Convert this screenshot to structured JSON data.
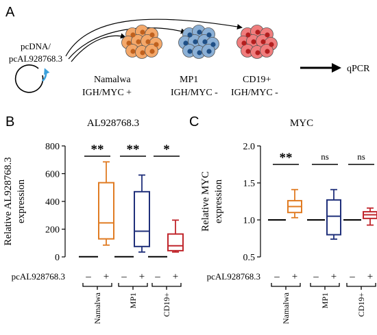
{
  "panel_a": {
    "letter": "A",
    "vector_label_line1": "pcDNA/",
    "vector_label_line2": "pcAL928768.3",
    "cells": [
      {
        "name_line1": "Namalwa",
        "name_line2": "IGH/MYC +",
        "fill": "#f4a86a",
        "nucleus": "#c0611e"
      },
      {
        "name_line1": "MP1",
        "name_line2": "IGH/MYC -",
        "fill": "#8bb0d6",
        "nucleus": "#1f4f86"
      },
      {
        "name_line1": "CD19+",
        "name_line2": "IGH/MYC -",
        "fill": "#f07d7d",
        "nucleus": "#b31f1f"
      }
    ],
    "result_label": "qPCR",
    "plasmid_arrow_color": "#3aa0dc"
  },
  "chart_data": [
    {
      "type": "box",
      "panel": "B",
      "title": "AL928768.3",
      "ylabel": "Relative AL928768.3 expression",
      "ylim": [
        0,
        800
      ],
      "yticks": [
        0,
        200,
        400,
        600,
        800
      ],
      "treatment_label": "pcAL928768.3",
      "pair_labels": [
        "–",
        "+"
      ],
      "groups": [
        "Namalwa",
        "MP1",
        "CD19+"
      ],
      "series": [
        {
          "group": "Namalwa",
          "treatment": "–",
          "color": "#000000",
          "min": 1,
          "q1": 1,
          "median": 1,
          "q3": 1,
          "max": 1
        },
        {
          "group": "Namalwa",
          "treatment": "+",
          "color": "#e07b22",
          "min": 85,
          "q1": 130,
          "median": 245,
          "q3": 535,
          "max": 685
        },
        {
          "group": "MP1",
          "treatment": "–",
          "color": "#000000",
          "min": 1,
          "q1": 1,
          "median": 1,
          "q3": 1,
          "max": 1
        },
        {
          "group": "MP1",
          "treatment": "+",
          "color": "#1f2f7a",
          "min": 35,
          "q1": 75,
          "median": 185,
          "q3": 470,
          "max": 590
        },
        {
          "group": "CD19+",
          "treatment": "–",
          "color": "#000000",
          "min": 1,
          "q1": 1,
          "median": 1,
          "q3": 1,
          "max": 1
        },
        {
          "group": "CD19+",
          "treatment": "+",
          "color": "#c0252b",
          "min": 35,
          "q1": 45,
          "median": 80,
          "q3": 165,
          "max": 265
        }
      ],
      "significance": [
        "**",
        "**",
        "*"
      ]
    },
    {
      "type": "box",
      "panel": "C",
      "title": "MYC",
      "ylabel": "Relative MYC expression",
      "ylim": [
        0.5,
        2.0
      ],
      "yticks": [
        "0.5",
        "1.0",
        "1.5",
        "2.0"
      ],
      "treatment_label": "pcAL928768.3",
      "pair_labels": [
        "–",
        "+"
      ],
      "groups": [
        "Namalwa",
        "MP1",
        "CD19+"
      ],
      "series": [
        {
          "group": "Namalwa",
          "treatment": "–",
          "color": "#000000",
          "min": 1.0,
          "q1": 1.0,
          "median": 1.0,
          "q3": 1.0,
          "max": 1.0
        },
        {
          "group": "Namalwa",
          "treatment": "+",
          "color": "#e07b22",
          "min": 1.03,
          "q1": 1.1,
          "median": 1.18,
          "q3": 1.26,
          "max": 1.41
        },
        {
          "group": "MP1",
          "treatment": "–",
          "color": "#000000",
          "min": 1.0,
          "q1": 1.0,
          "median": 1.0,
          "q3": 1.0,
          "max": 1.0
        },
        {
          "group": "MP1",
          "treatment": "+",
          "color": "#1f2f7a",
          "min": 0.74,
          "q1": 0.8,
          "median": 1.05,
          "q3": 1.27,
          "max": 1.41
        },
        {
          "group": "CD19+",
          "treatment": "–",
          "color": "#000000",
          "min": 1.0,
          "q1": 1.0,
          "median": 1.0,
          "q3": 1.0,
          "max": 1.0
        },
        {
          "group": "CD19+",
          "treatment": "+",
          "color": "#c0252b",
          "min": 0.93,
          "q1": 1.02,
          "median": 1.07,
          "q3": 1.11,
          "max": 1.16
        }
      ],
      "significance": [
        "**",
        "ns",
        "ns"
      ]
    }
  ]
}
